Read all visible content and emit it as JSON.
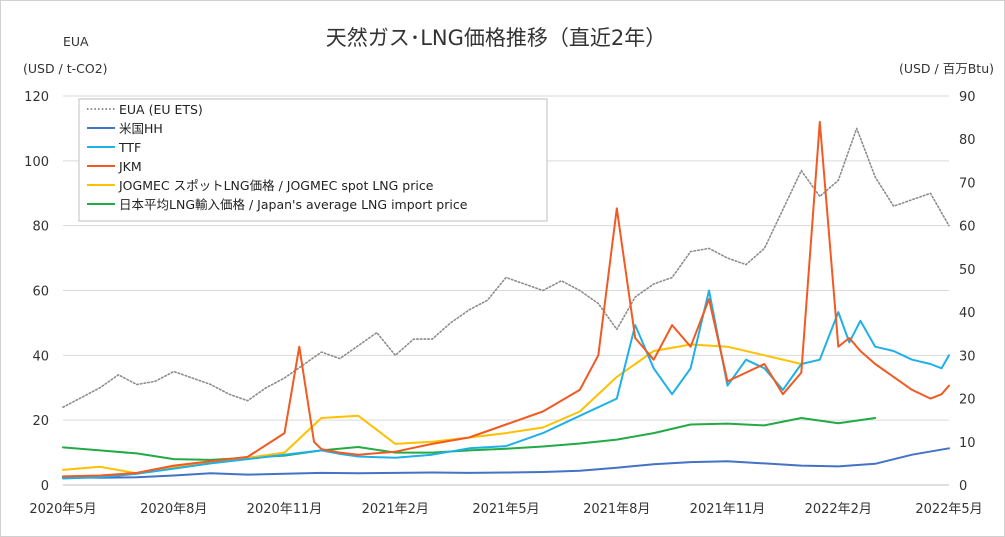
{
  "chart_data": {
    "type": "line",
    "title": "天然ガス･LNG価格推移（直近2年）",
    "left_axis": {
      "label_line1": "EUA",
      "label_line2": "(USD / t-CO2)",
      "range": [
        0,
        120
      ],
      "ticks": [
        "0",
        "20",
        "40",
        "60",
        "80",
        "100",
        "120"
      ]
    },
    "right_axis": {
      "label": "(USD / 百万Btu)",
      "range": [
        0,
        90
      ],
      "ticks": [
        "0",
        "10",
        "20",
        "30",
        "40",
        "50",
        "60",
        "70",
        "80",
        "90"
      ]
    },
    "x_ticks": [
      "2020年5月",
      "2020年8月",
      "2020年11月",
      "2021年2月",
      "2021年5月",
      "2021年8月",
      "2021年11月",
      "2022年2月",
      "2022年5月"
    ],
    "x_range_months": [
      0,
      24
    ],
    "grid": "horizontal",
    "legend_position": "top-left",
    "series": [
      {
        "name": "EUA (EU ETS)",
        "axis": "left",
        "color": "#8c8c8c",
        "style": "dotted",
        "x": [
          0,
          0.5,
          1,
          1.5,
          2,
          2.5,
          3,
          3.5,
          4,
          4.5,
          5,
          5.5,
          6,
          6.5,
          7,
          7.5,
          8,
          8.5,
          9,
          9.5,
          10,
          10.5,
          11,
          11.5,
          12,
          12.5,
          13,
          13.5,
          14,
          14.5,
          15,
          15.5,
          16,
          16.5,
          17,
          17.5,
          18,
          18.5,
          19,
          19.5,
          20,
          20.5,
          21,
          21.5,
          22,
          22.5,
          23,
          23.5,
          24
        ],
        "values": [
          24,
          27,
          30,
          34,
          31,
          32,
          35,
          33,
          31,
          28,
          26,
          30,
          33,
          37,
          41,
          39,
          43,
          47,
          40,
          45,
          45,
          50,
          54,
          57,
          64,
          62,
          60,
          63,
          60,
          56,
          48,
          58,
          62,
          64,
          72,
          73,
          70,
          68,
          73,
          85,
          97,
          89,
          94,
          110,
          95,
          86,
          88,
          90,
          80
        ]
      },
      {
        "name": "米国HH",
        "axis": "right",
        "color": "#4472c4",
        "style": "solid",
        "x": [
          0,
          1,
          2,
          3,
          4,
          5,
          6,
          7,
          8,
          9,
          10,
          11,
          12,
          13,
          14,
          15,
          16,
          17,
          18,
          19,
          20,
          21,
          22,
          23,
          24
        ],
        "values": [
          1.8,
          1.7,
          1.8,
          2.2,
          2.7,
          2.4,
          2.6,
          2.8,
          2.7,
          2.8,
          2.9,
          2.8,
          2.9,
          3.0,
          3.3,
          4.0,
          4.8,
          5.3,
          5.5,
          5.0,
          4.5,
          4.3,
          4.9,
          7.0,
          8.5
        ]
      },
      {
        "name": "TTF",
        "axis": "right",
        "color": "#1fb0e8",
        "style": "solid",
        "x": [
          0,
          1,
          2,
          3,
          4,
          5,
          6,
          7,
          7.5,
          8,
          9,
          10,
          11,
          12,
          13,
          14,
          15,
          15.5,
          16,
          16.5,
          17,
          17.5,
          18,
          18.5,
          19,
          19.5,
          20,
          20.5,
          21,
          21.3,
          21.6,
          22,
          22.5,
          23,
          23.5,
          23.8,
          24
        ],
        "values": [
          1.5,
          1.8,
          2.6,
          3.8,
          5.0,
          6.0,
          7.0,
          8.0,
          7.2,
          6.6,
          6.3,
          7.0,
          8.5,
          9.0,
          12.0,
          16.0,
          20.0,
          37.0,
          27.0,
          21.0,
          27.0,
          45.0,
          23.0,
          29.0,
          27.0,
          22.0,
          28.0,
          29.0,
          40.0,
          33.0,
          38.0,
          32.0,
          31.0,
          29.0,
          28.0,
          27.0,
          30.0
        ]
      },
      {
        "name": "JKM",
        "axis": "right",
        "color": "#f15a22",
        "style": "solid",
        "x": [
          0,
          1,
          2,
          3,
          4,
          5,
          6,
          6.4,
          6.8,
          7,
          7.5,
          8,
          9,
          10,
          11,
          12,
          13,
          14,
          14.5,
          15,
          15.5,
          16,
          16.5,
          17,
          17.5,
          18,
          18.5,
          19,
          19.5,
          20,
          20.5,
          21,
          21.3,
          21.6,
          22,
          22.5,
          23,
          23.5,
          23.8,
          24
        ],
        "values": [
          2.0,
          2.2,
          2.8,
          4.5,
          5.5,
          6.5,
          12.0,
          32.0,
          10.0,
          8.3,
          7.5,
          7.0,
          7.7,
          9.5,
          11.0,
          14.0,
          17.0,
          22.0,
          30.0,
          64.0,
          34.0,
          29.0,
          37.0,
          32.0,
          43.0,
          24.0,
          26.0,
          28.0,
          21.0,
          26.0,
          84.0,
          32.0,
          34.0,
          31.0,
          28.0,
          25.0,
          22.0,
          20.0,
          21.0,
          23.0
        ]
      },
      {
        "name": "JOGMEC スポットLNG価格 / JOGMEC spot LNG price",
        "axis": "right",
        "color": "#ffc000",
        "style": "solid",
        "x": [
          0,
          1,
          2,
          3,
          4,
          5,
          6,
          7,
          8,
          9,
          10,
          11,
          12,
          13,
          14,
          15,
          16,
          17,
          18,
          19,
          20,
          21,
          22,
          23,
          24
        ],
        "values": [
          3.5,
          4.2,
          2.7,
          4.2,
          5.3,
          6.3,
          7.5,
          15.5,
          16.0,
          9.5,
          10.0,
          11.0,
          12.0,
          13.3,
          17.0,
          25.0,
          31.0,
          32.5,
          32.0,
          30.0,
          28.0,
          null,
          null,
          null,
          null
        ]
      },
      {
        "name": "日本平均LNG輸入価格 / Japan's average LNG import price",
        "axis": "right",
        "color": "#22aa44",
        "style": "solid",
        "x": [
          0,
          1,
          2,
          3,
          4,
          5,
          6,
          7,
          8,
          9,
          10,
          11,
          12,
          13,
          14,
          15,
          16,
          17,
          18,
          19,
          20,
          21,
          22,
          23,
          24
        ],
        "values": [
          8.7,
          8.0,
          7.3,
          6.0,
          5.8,
          6.3,
          6.8,
          8.0,
          8.8,
          7.5,
          7.5,
          8.0,
          8.4,
          8.9,
          9.6,
          10.5,
          12.0,
          14.0,
          14.2,
          13.8,
          15.5,
          14.3,
          15.5,
          null,
          null
        ]
      }
    ]
  }
}
